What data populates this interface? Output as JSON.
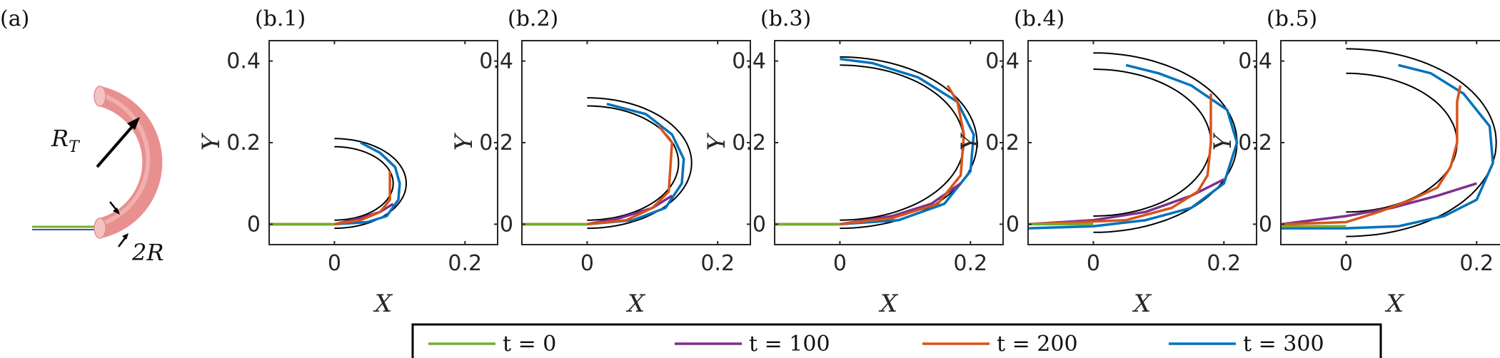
{
  "figure": {
    "schematic": {
      "label": "(a)",
      "radius_label": "R",
      "radius_subscript": "T",
      "diameter_label": "2R"
    },
    "colors": {
      "t0": "#77AC30",
      "t100": "#7E2F8E",
      "t200": "#D95319",
      "t300": "#0072BD",
      "guide": "#000000",
      "tube": "#E8908F"
    },
    "legend": {
      "entries": [
        "t = 0",
        "t = 100",
        "t = 200",
        "t = 300"
      ]
    }
  },
  "chart_data": [
    {
      "type": "line",
      "panel": "(b.1)",
      "xlabel": "X",
      "ylabel": "Y",
      "xlim": [
        -0.1,
        0.25
      ],
      "ylim": [
        -0.05,
        0.45
      ],
      "xticks": [
        "0",
        "0.2"
      ],
      "yticks": [
        "0",
        "0.2",
        "0.4"
      ],
      "guide_arcs": [
        {
          "cx": 0.0,
          "cy": 0.1,
          "r": 0.11
        },
        {
          "cx": 0.0,
          "cy": 0.1,
          "r": 0.09
        }
      ],
      "series": [
        {
          "name": "t = 0",
          "points": [
            [
              -0.1,
              0.0
            ],
            [
              0.0,
              0.0
            ]
          ]
        },
        {
          "name": "t = 100",
          "points": [
            [
              -0.1,
              0.0
            ],
            [
              0.0,
              0.0
            ],
            [
              0.04,
              0.015
            ],
            [
              0.07,
              0.03
            ],
            [
              0.09,
              0.05
            ]
          ]
        },
        {
          "name": "t = 200",
          "points": [
            [
              -0.1,
              0.0
            ],
            [
              0.0,
              0.0
            ],
            [
              0.04,
              0.01
            ],
            [
              0.07,
              0.03
            ],
            [
              0.085,
              0.06
            ],
            [
              0.085,
              0.13
            ]
          ]
        },
        {
          "name": "t = 300",
          "points": [
            [
              -0.1,
              0.0
            ],
            [
              0.0,
              0.0
            ],
            [
              0.05,
              0.005
            ],
            [
              0.08,
              0.02
            ],
            [
              0.098,
              0.06
            ],
            [
              0.1,
              0.1
            ],
            [
              0.093,
              0.14
            ],
            [
              0.07,
              0.175
            ],
            [
              0.04,
              0.2
            ]
          ]
        }
      ]
    },
    {
      "type": "line",
      "panel": "(b.2)",
      "xlabel": "X",
      "ylabel": "Y",
      "xlim": [
        -0.1,
        0.25
      ],
      "ylim": [
        -0.05,
        0.45
      ],
      "xticks": [
        "0",
        "0.2"
      ],
      "yticks": [
        "0",
        "0.2",
        "0.4"
      ],
      "guide_arcs": [
        {
          "cx": 0.0,
          "cy": 0.15,
          "r": 0.16
        },
        {
          "cx": 0.0,
          "cy": 0.15,
          "r": 0.14
        }
      ],
      "series": [
        {
          "name": "t = 0",
          "points": [
            [
              -0.1,
              0.0
            ],
            [
              0.0,
              0.0
            ]
          ]
        },
        {
          "name": "t = 100",
          "points": [
            [
              -0.1,
              0.0
            ],
            [
              0.0,
              0.0
            ],
            [
              0.05,
              0.015
            ],
            [
              0.1,
              0.04
            ],
            [
              0.13,
              0.07
            ]
          ]
        },
        {
          "name": "t = 200",
          "points": [
            [
              -0.1,
              0.0
            ],
            [
              0.0,
              0.0
            ],
            [
              0.06,
              0.01
            ],
            [
              0.1,
              0.04
            ],
            [
              0.125,
              0.08
            ],
            [
              0.13,
              0.2
            ],
            [
              0.11,
              0.24
            ]
          ]
        },
        {
          "name": "t = 300",
          "points": [
            [
              -0.1,
              0.0
            ],
            [
              0.0,
              0.0
            ],
            [
              0.07,
              0.01
            ],
            [
              0.12,
              0.04
            ],
            [
              0.145,
              0.1
            ],
            [
              0.148,
              0.16
            ],
            [
              0.13,
              0.22
            ],
            [
              0.09,
              0.27
            ],
            [
              0.03,
              0.295
            ]
          ]
        }
      ]
    },
    {
      "type": "line",
      "panel": "(b.3)",
      "xlabel": "X",
      "ylabel": "Y",
      "xlim": [
        -0.1,
        0.25
      ],
      "ylim": [
        -0.05,
        0.45
      ],
      "xticks": [
        "0",
        "0.2"
      ],
      "yticks": [
        "0",
        "0.2",
        "0.4"
      ],
      "guide_arcs": [
        {
          "cx": 0.0,
          "cy": 0.2,
          "r": 0.21
        },
        {
          "cx": 0.0,
          "cy": 0.2,
          "r": 0.19
        }
      ],
      "series": [
        {
          "name": "t = 0",
          "points": [
            [
              -0.1,
              0.0
            ],
            [
              0.0,
              0.0
            ]
          ]
        },
        {
          "name": "t = 100",
          "points": [
            [
              -0.1,
              0.0
            ],
            [
              0.0,
              0.0
            ],
            [
              0.08,
              0.02
            ],
            [
              0.14,
              0.05
            ],
            [
              0.185,
              0.1
            ]
          ]
        },
        {
          "name": "t = 200",
          "points": [
            [
              -0.1,
              0.0
            ],
            [
              0.0,
              0.0
            ],
            [
              0.08,
              0.015
            ],
            [
              0.15,
              0.05
            ],
            [
              0.185,
              0.12
            ],
            [
              0.19,
              0.22
            ],
            [
              0.18,
              0.3
            ],
            [
              0.165,
              0.34
            ]
          ]
        },
        {
          "name": "t = 300",
          "points": [
            [
              -0.1,
              0.0
            ],
            [
              0.0,
              0.0
            ],
            [
              0.09,
              0.01
            ],
            [
              0.16,
              0.05
            ],
            [
              0.2,
              0.13
            ],
            [
              0.205,
              0.22
            ],
            [
              0.18,
              0.3
            ],
            [
              0.12,
              0.36
            ],
            [
              0.05,
              0.395
            ],
            [
              0.0,
              0.405
            ]
          ]
        }
      ]
    },
    {
      "type": "line",
      "panel": "(b.4)",
      "xlabel": "X",
      "ylabel": "Y",
      "xlim": [
        -0.1,
        0.25
      ],
      "ylim": [
        -0.05,
        0.45
      ],
      "xticks": [
        "0",
        "0.2"
      ],
      "yticks": [
        "0",
        "0.2",
        "0.4"
      ],
      "guide_arcs": [
        {
          "cx": 0.0,
          "cy": 0.2,
          "r": 0.22
        },
        {
          "cx": 0.0,
          "cy": 0.2,
          "r": 0.18
        }
      ],
      "series": [
        {
          "name": "t = 0",
          "points": [
            [
              -0.1,
              0.0
            ],
            [
              0.0,
              0.0
            ]
          ]
        },
        {
          "name": "t = 100",
          "points": [
            [
              -0.1,
              0.0
            ],
            [
              0.0,
              0.01
            ],
            [
              0.08,
              0.03
            ],
            [
              0.15,
              0.07
            ],
            [
              0.2,
              0.11
            ]
          ]
        },
        {
          "name": "t = 200",
          "points": [
            [
              -0.1,
              0.0
            ],
            [
              0.05,
              0.01
            ],
            [
              0.12,
              0.04
            ],
            [
              0.16,
              0.08
            ],
            [
              0.175,
              0.12
            ],
            [
              0.18,
              0.2
            ],
            [
              0.18,
              0.32
            ]
          ]
        },
        {
          "name": "t = 300",
          "points": [
            [
              -0.1,
              -0.01
            ],
            [
              0.0,
              -0.005
            ],
            [
              0.08,
              0.01
            ],
            [
              0.15,
              0.04
            ],
            [
              0.2,
              0.1
            ],
            [
              0.22,
              0.2
            ],
            [
              0.205,
              0.28
            ],
            [
              0.15,
              0.34
            ],
            [
              0.1,
              0.37
            ],
            [
              0.05,
              0.39
            ]
          ]
        }
      ]
    },
    {
      "type": "line",
      "panel": "(b.5)",
      "xlabel": "X",
      "ylabel": "Y",
      "xlim": [
        -0.1,
        0.25
      ],
      "ylim": [
        -0.05,
        0.45
      ],
      "xticks": [
        "0",
        "0.2"
      ],
      "yticks": [
        "0",
        "0.2",
        "0.4"
      ],
      "guide_arcs": [
        {
          "cx": 0.0,
          "cy": 0.2,
          "r": 0.23
        },
        {
          "cx": 0.0,
          "cy": 0.2,
          "r": 0.17
        }
      ],
      "series": [
        {
          "name": "t = 0",
          "points": [
            [
              -0.1,
              -0.005
            ],
            [
              0.0,
              -0.005
            ]
          ]
        },
        {
          "name": "t = 100",
          "points": [
            [
              -0.1,
              0.0
            ],
            [
              0.0,
              0.02
            ],
            [
              0.07,
              0.04
            ],
            [
              0.14,
              0.07
            ],
            [
              0.2,
              0.1
            ]
          ]
        },
        {
          "name": "t = 200",
          "points": [
            [
              -0.1,
              0.0
            ],
            [
              0.0,
              0.005
            ],
            [
              0.05,
              0.03
            ],
            [
              0.1,
              0.06
            ],
            [
              0.14,
              0.09
            ],
            [
              0.16,
              0.14
            ],
            [
              0.17,
              0.2
            ],
            [
              0.17,
              0.3
            ],
            [
              0.175,
              0.34
            ]
          ]
        },
        {
          "name": "t = 300",
          "points": [
            [
              -0.1,
              -0.01
            ],
            [
              0.0,
              -0.01
            ],
            [
              0.08,
              -0.005
            ],
            [
              0.15,
              0.02
            ],
            [
              0.2,
              0.06
            ],
            [
              0.225,
              0.15
            ],
            [
              0.22,
              0.24
            ],
            [
              0.18,
              0.32
            ],
            [
              0.13,
              0.37
            ],
            [
              0.08,
              0.39
            ]
          ]
        }
      ]
    }
  ]
}
